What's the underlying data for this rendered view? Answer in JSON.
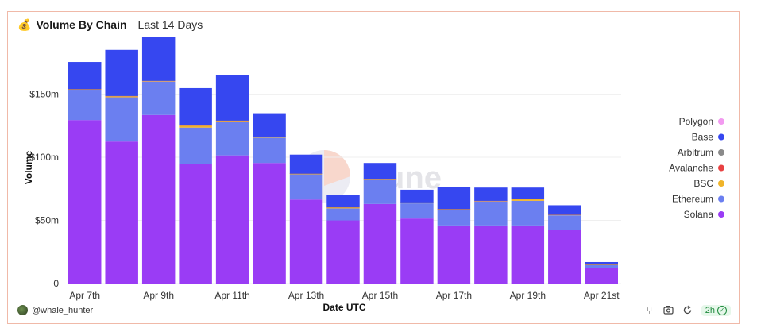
{
  "header": {
    "icon": "money-bag-icon",
    "title": "Volume By Chain",
    "subtitle": "Last 14 Days"
  },
  "watermark": "Dune",
  "footer": {
    "author": "@whale_hunter",
    "refresh_badge": "2h"
  },
  "chart_data": {
    "type": "bar",
    "stacked": true,
    "xlabel": "Date UTC",
    "ylabel": "Volume",
    "ylim": [
      0,
      190000000
    ],
    "yticks": [
      {
        "value": 0,
        "label": "0"
      },
      {
        "value": 50000000,
        "label": "$50m"
      },
      {
        "value": 100000000,
        "label": "$100m"
      },
      {
        "value": 150000000,
        "label": "$150m"
      }
    ],
    "categories": [
      "Apr 7th",
      "Apr 8th",
      "Apr 9th",
      "Apr 10th",
      "Apr 11th",
      "Apr 12th",
      "Apr 13th",
      "Apr 14th",
      "Apr 15th",
      "Apr 16th",
      "Apr 17th",
      "Apr 18th",
      "Apr 19th",
      "Apr 20th",
      "Apr 21st"
    ],
    "xtick_labels": [
      "Apr 7th",
      "",
      "Apr 9th",
      "",
      "Apr 11th",
      "",
      "Apr 13th",
      "",
      "Apr 15th",
      "",
      "Apr 17th",
      "",
      "Apr 19th",
      "",
      "Apr 21st"
    ],
    "legend_position": "right",
    "series": [
      {
        "name": "Solana",
        "color": "#9a3cf5",
        "values": [
          129500000,
          112500000,
          133500000,
          95000000,
          101500000,
          95500000,
          66500000,
          50000000,
          63000000,
          51500000,
          46000000,
          46000000,
          46000000,
          42500000,
          12000000
        ]
      },
      {
        "name": "Ethereum",
        "color": "#6b7ff0",
        "values": [
          24000000,
          35000000,
          26500000,
          28500000,
          26500000,
          20000000,
          20000000,
          9500000,
          19500000,
          12000000,
          12500000,
          19000000,
          19500000,
          11500000,
          2500000
        ]
      },
      {
        "name": "BSC",
        "color": "#f0b429",
        "values": [
          200000,
          800000,
          300000,
          1500000,
          800000,
          600000,
          300000,
          600000,
          200000,
          500000,
          200000,
          200000,
          1200000,
          200000,
          100000
        ]
      },
      {
        "name": "Avalanche",
        "color": "#e84142",
        "values": [
          100000,
          100000,
          100000,
          100000,
          100000,
          100000,
          100000,
          100000,
          100000,
          100000,
          100000,
          100000,
          100000,
          100000,
          100000
        ]
      },
      {
        "name": "Arbitrum",
        "color": "#8a8a8a",
        "values": [
          200000,
          200000,
          200000,
          200000,
          200000,
          200000,
          200000,
          200000,
          200000,
          200000,
          200000,
          200000,
          200000,
          200000,
          700000
        ]
      },
      {
        "name": "Base",
        "color": "#3647f0",
        "values": [
          21500000,
          36500000,
          35000000,
          29500000,
          36000000,
          18500000,
          15000000,
          9500000,
          12500000,
          10000000,
          17500000,
          10500000,
          9000000,
          7500000,
          1600000
        ]
      },
      {
        "name": "Polygon",
        "color": "#f29af0",
        "values": [
          0,
          0,
          0,
          0,
          0,
          0,
          0,
          0,
          0,
          0,
          0,
          0,
          0,
          0,
          0
        ]
      }
    ],
    "legend_order": [
      "Polygon",
      "Base",
      "Arbitrum",
      "Avalanche",
      "BSC",
      "Ethereum",
      "Solana"
    ]
  }
}
